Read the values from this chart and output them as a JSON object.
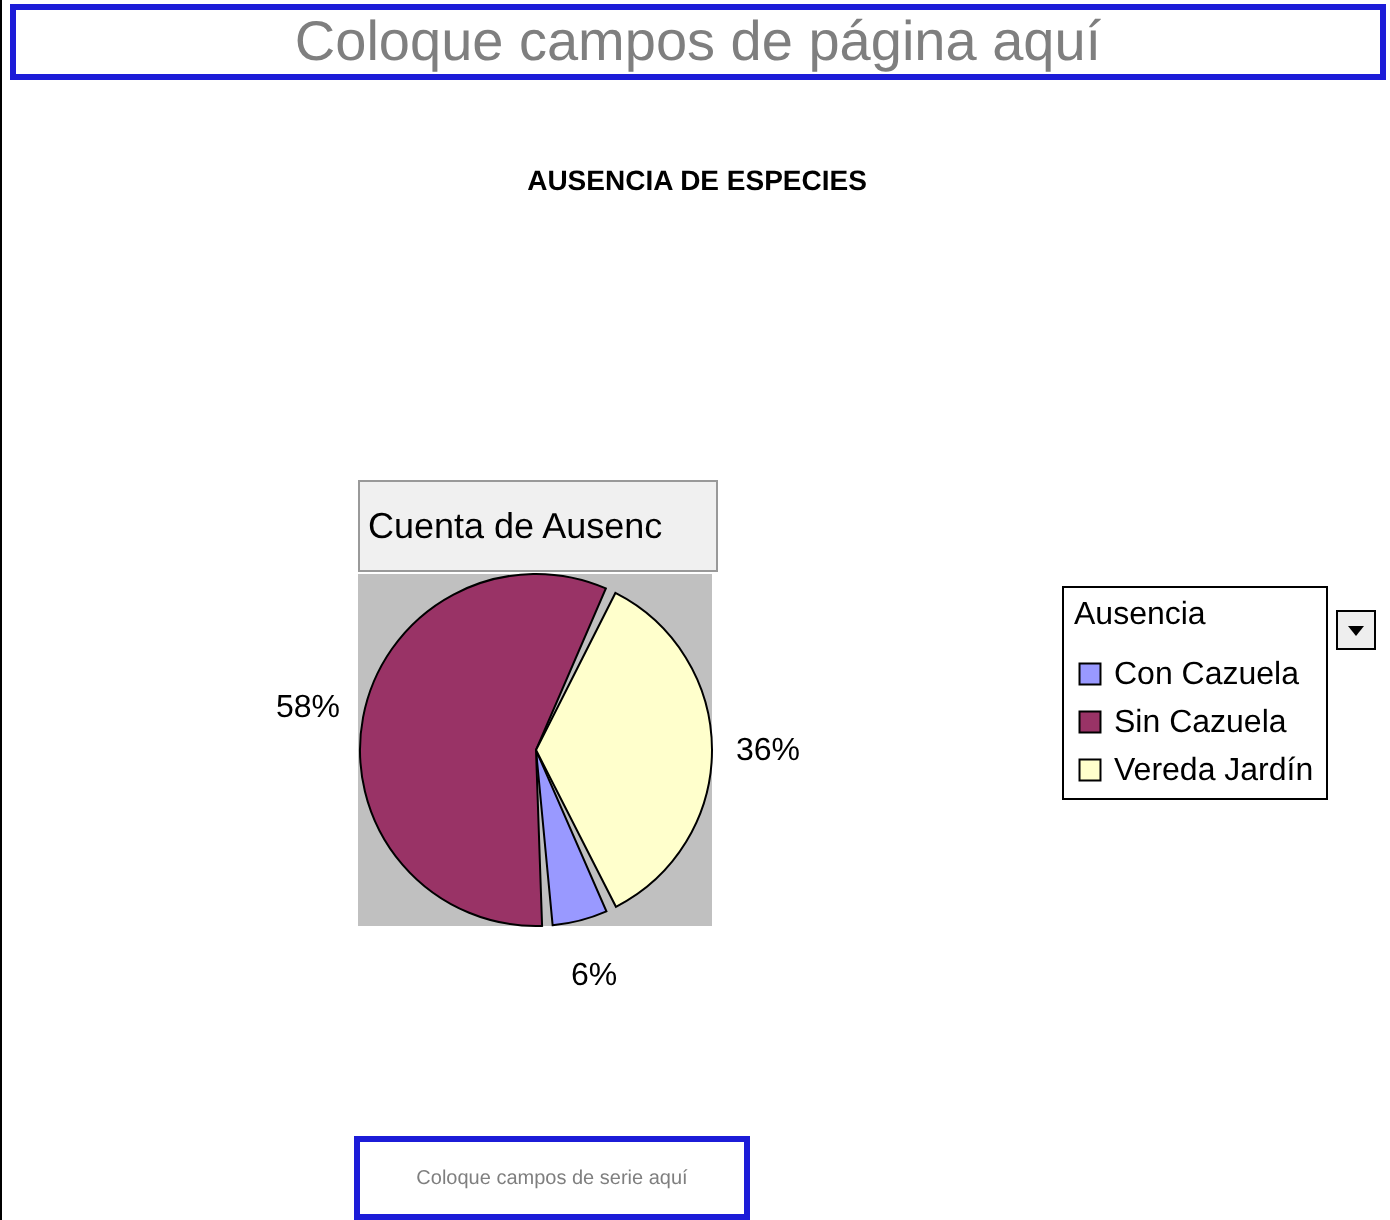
{
  "chart_data": {
    "type": "pie",
    "title": "AUSENCIA DE ESPECIES",
    "legend_title": "Ausencia",
    "legend": "right",
    "data_labels": true,
    "categories": [
      "Con Cazuela",
      "Sin Cazuela",
      "Vereda Jardín"
    ],
    "values": [
      6,
      58,
      36
    ],
    "colors": [
      "#9999ff",
      "#993366",
      "#ffffcc"
    ],
    "value_labels": [
      "6%",
      "58%",
      "36%"
    ],
    "annotations": [
      "Coloque campos de página aquí",
      "Cuenta de Ausenc",
      "Coloque campos de serie aquí"
    ]
  }
}
